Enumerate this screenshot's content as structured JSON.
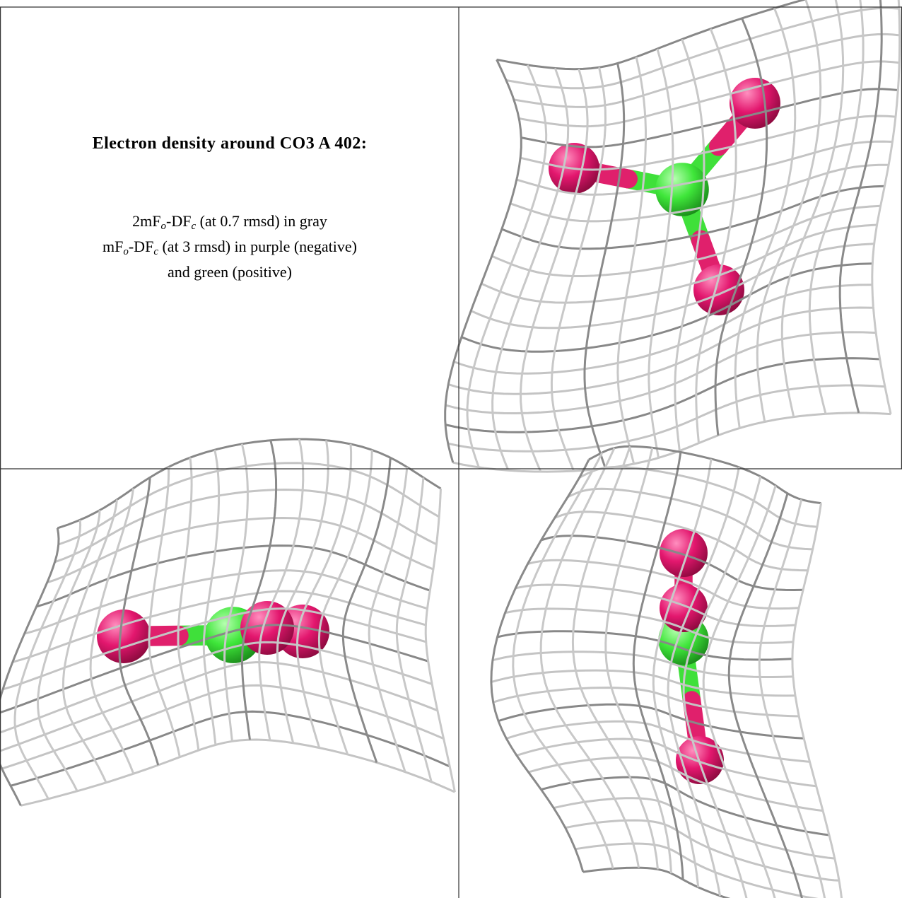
{
  "caption": {
    "title": "Electron density around CO3 A 402:",
    "lines": [
      [
        "2mF",
        "o",
        "-DF",
        "c",
        " (at 0.7 rmsd) in gray"
      ],
      [
        "mF",
        "o",
        "-DF",
        "c",
        " (at 3 rmsd) in purple (negative)"
      ],
      [
        "and green (positive)"
      ]
    ]
  }
}
